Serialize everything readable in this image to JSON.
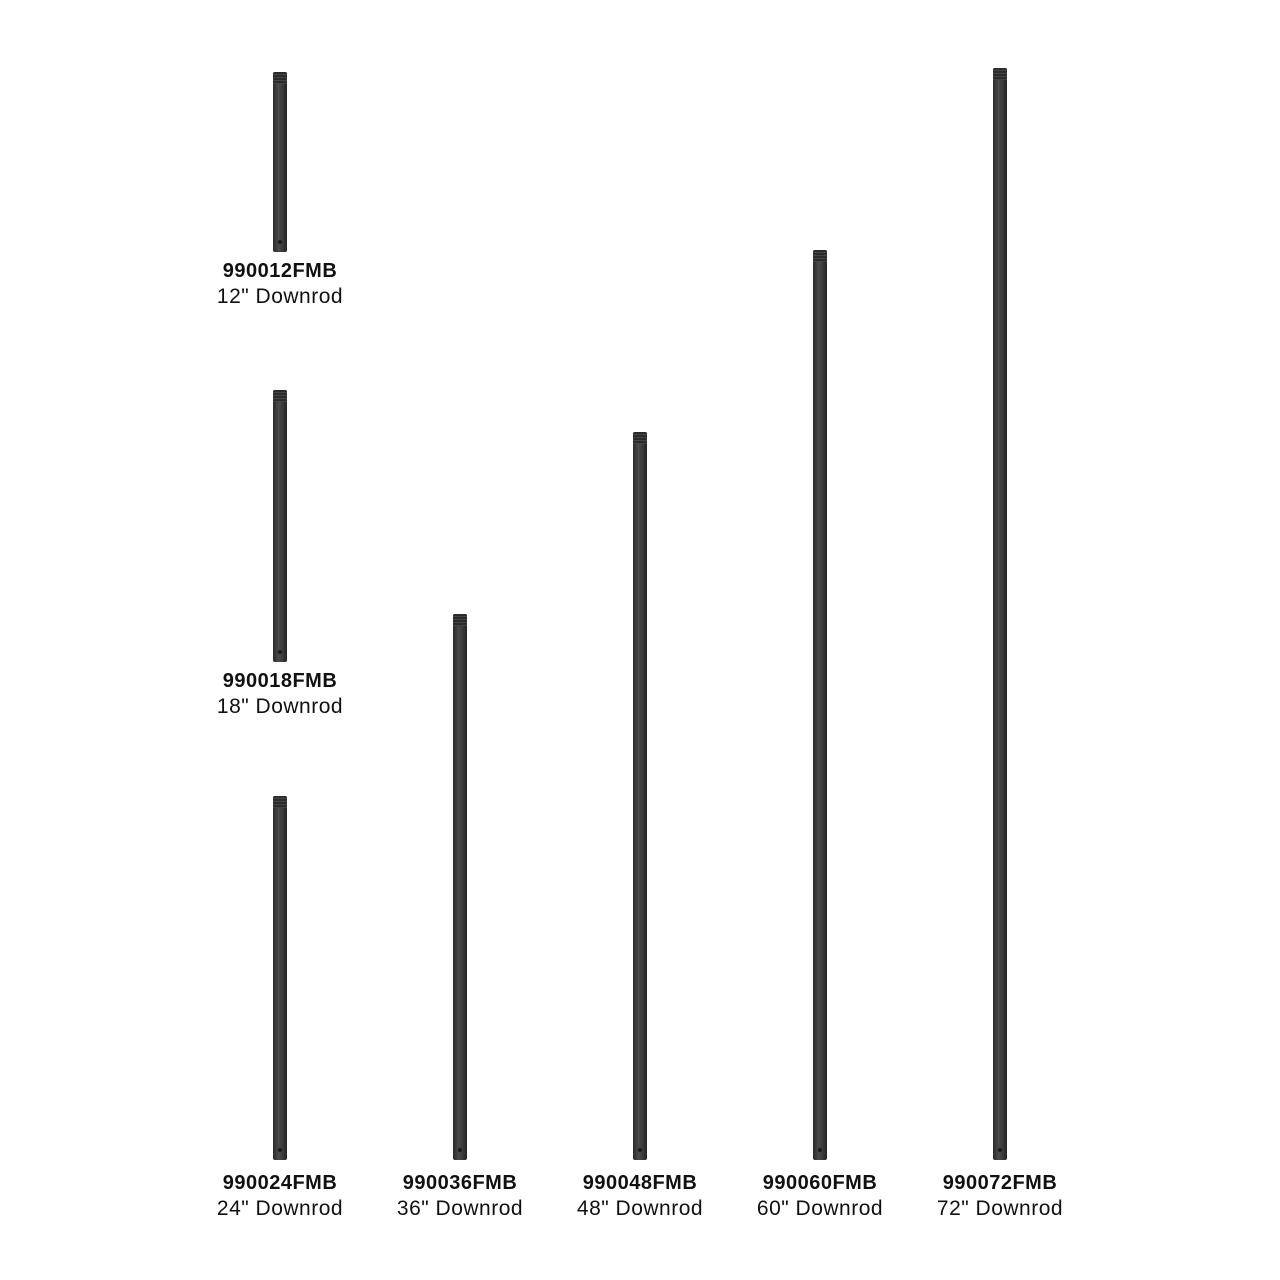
{
  "rod_color": "#3a3a3a",
  "products": [
    {
      "code": "990012FMB",
      "description": "12\" Downrod",
      "length_in": 12
    },
    {
      "code": "990018FMB",
      "description": "18\" Downrod",
      "length_in": 18
    },
    {
      "code": "990024FMB",
      "description": "24\" Downrod",
      "length_in": 24
    },
    {
      "code": "990036FMB",
      "description": "36\" Downrod",
      "length_in": 36
    },
    {
      "code": "990048FMB",
      "description": "48\" Downrod",
      "length_in": 48
    },
    {
      "code": "990060FMB",
      "description": "60\" Downrod",
      "length_in": 60
    },
    {
      "code": "990072FMB",
      "description": "72\" Downrod",
      "length_in": 72
    }
  ]
}
